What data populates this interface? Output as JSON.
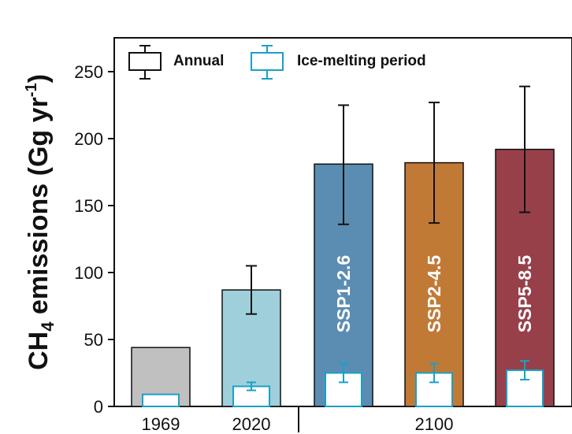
{
  "chart_data": {
    "type": "bar",
    "ylabel": {
      "main": "CH",
      "sub": "4",
      "rest": " emissions (Gg yr",
      "sup": "-1",
      "close": ")"
    },
    "ylim": [
      0,
      270
    ],
    "yticks": [
      0,
      50,
      100,
      150,
      200,
      250
    ],
    "x_tick_labels": [
      "1969",
      "2020",
      "2100"
    ],
    "legend": {
      "position": "top-left",
      "entries": [
        {
          "label": "Annual",
          "color": "#111111"
        },
        {
          "label": "Ice-melting period",
          "color": "#1aa0c8"
        }
      ]
    },
    "bars": [
      {
        "group": "1969",
        "scenario": "",
        "annual": 44,
        "annual_err": null,
        "ice": 9,
        "ice_err": null,
        "color": "#c0c0c0"
      },
      {
        "group": "2020",
        "scenario": "",
        "annual": 87,
        "annual_err": [
          69,
          105
        ],
        "ice": 15,
        "ice_err": [
          12,
          18
        ],
        "color": "#9fcfdb"
      },
      {
        "group": "2100",
        "scenario": "SSP1-2.6",
        "annual": 181,
        "annual_err": [
          136,
          225
        ],
        "ice": 25,
        "ice_err": [
          18,
          32
        ],
        "color": "#5b8db3"
      },
      {
        "group": "2100",
        "scenario": "SSP2-4.5",
        "annual": 182,
        "annual_err": [
          137,
          227
        ],
        "ice": 25,
        "ice_err": [
          18,
          32
        ],
        "color": "#c17a36"
      },
      {
        "group": "2100",
        "scenario": "SSP5-8.5",
        "annual": 192,
        "annual_err": [
          145,
          239
        ],
        "ice": 27,
        "ice_err": [
          20,
          34
        ],
        "color": "#97404a"
      }
    ]
  }
}
